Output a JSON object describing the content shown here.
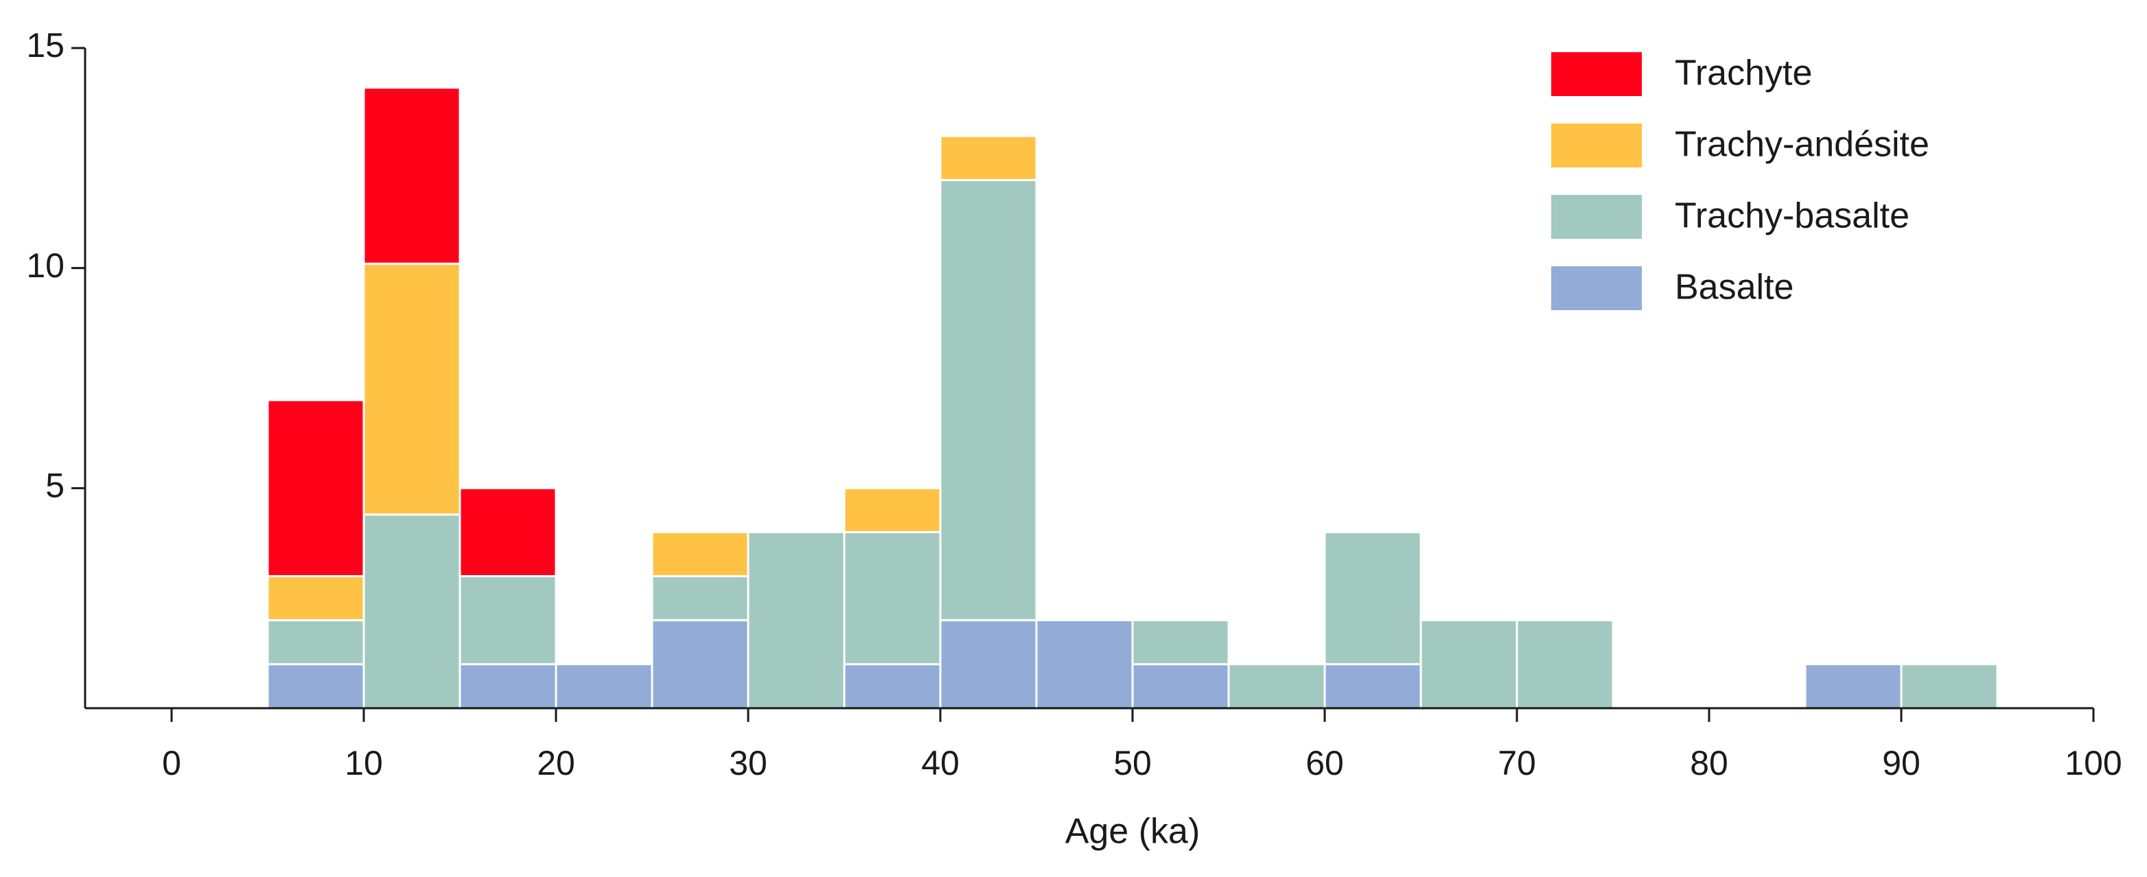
{
  "chart_data": {
    "type": "histogram",
    "stacked": true,
    "x_label": "Age (ka)",
    "bins": [
      5,
      10,
      15,
      20,
      25,
      30,
      35,
      40,
      45,
      50,
      55,
      60,
      65,
      70,
      75,
      80,
      85,
      90,
      95
    ],
    "series": [
      {
        "name": "Basalte",
        "color": "#92acd7",
        "values": [
          1,
          0,
          1,
          1,
          2,
          0,
          1,
          2,
          2,
          1,
          0,
          1,
          0,
          0,
          0,
          0,
          1,
          0
        ]
      },
      {
        "name": "Trachy-basalte",
        "color": "#a2c9bf",
        "values": [
          1,
          4.4,
          2,
          0,
          1,
          4,
          3,
          10,
          0,
          1,
          1,
          3,
          2,
          2,
          0,
          0,
          0,
          1
        ]
      },
      {
        "name": "Trachy-andésite",
        "color": "#ffc244",
        "values": [
          1,
          5.7,
          0,
          0,
          1,
          0,
          1,
          1,
          0,
          0,
          0,
          0,
          0,
          0,
          0,
          0,
          0,
          0
        ]
      },
      {
        "name": "Trachyte",
        "color": "#ff0019",
        "values": [
          4,
          4,
          2,
          0,
          0,
          0,
          0,
          0,
          0,
          0,
          0,
          0,
          0,
          0,
          0,
          0,
          0,
          0
        ]
      }
    ],
    "xlim": [
      -4.5,
      100
    ],
    "ylim": [
      0,
      15
    ],
    "xticks": [
      0,
      10,
      20,
      30,
      40,
      50,
      60,
      70,
      80,
      90,
      100
    ],
    "yticks": [
      5,
      10,
      15
    ],
    "legend": "upper right",
    "grid": false
  }
}
